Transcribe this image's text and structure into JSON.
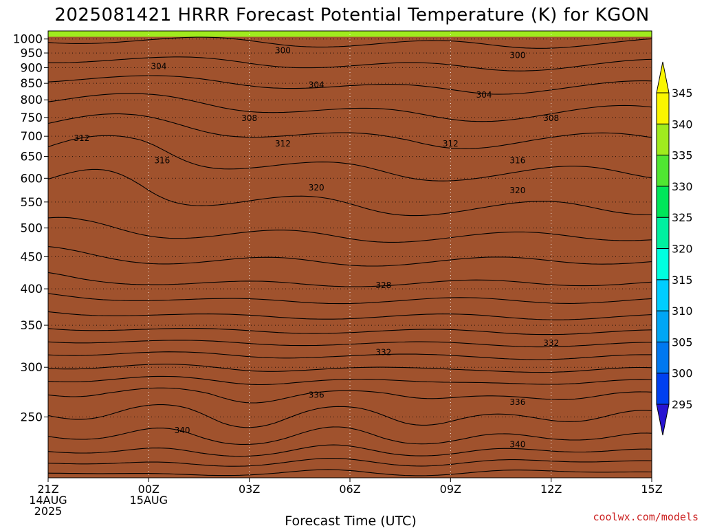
{
  "chart_data": {
    "type": "heatmap",
    "title": "2025081421 HRRR Forecast Potential Temperature (K) for KGON",
    "xlabel": "Forecast Time (UTC)",
    "ylabel": "",
    "x_ticks": [
      {
        "hours": 0,
        "lines": [
          "21Z",
          "14AUG",
          "2025"
        ]
      },
      {
        "hours": 3,
        "lines": [
          "00Z",
          "15AUG"
        ]
      },
      {
        "hours": 6,
        "lines": [
          "03Z"
        ]
      },
      {
        "hours": 9,
        "lines": [
          "06Z"
        ]
      },
      {
        "hours": 12,
        "lines": [
          "09Z"
        ]
      },
      {
        "hours": 15,
        "lines": [
          "12Z"
        ]
      },
      {
        "hours": 18,
        "lines": [
          "15Z"
        ]
      }
    ],
    "xlim_hours": [
      0,
      18
    ],
    "y_ticks": [
      "250",
      "300",
      "350",
      "400",
      "450",
      "500",
      "550",
      "600",
      "650",
      "700",
      "750",
      "800",
      "850",
      "900",
      "950",
      "1000"
    ],
    "ylim_hPa": [
      1030,
      200
    ],
    "y_scale": "log-pressure",
    "grid": "dotted",
    "colorbar": {
      "placement": "right",
      "levels": [
        295,
        300,
        305,
        310,
        315,
        320,
        325,
        330,
        335,
        340,
        345
      ],
      "labels": [
        "295",
        "300",
        "305",
        "310",
        "315",
        "320",
        "325",
        "330",
        "335",
        "340",
        "345"
      ],
      "colors": [
        "#1e00e6",
        "#0040f0",
        "#0078f0",
        "#00a6f5",
        "#00cdff",
        "#00ffe0",
        "#00f0a0",
        "#00e65a",
        "#50e632",
        "#a0eb1e",
        "#faf500"
      ]
    },
    "surface_color": "#a0522d",
    "contour_levels": [
      298,
      300,
      302,
      304,
      306,
      308,
      310,
      312,
      314,
      316,
      318,
      320,
      322,
      324,
      326,
      328,
      330,
      332,
      334,
      336,
      338,
      340,
      342,
      344
    ],
    "contour_labels": [
      {
        "hours": 1.0,
        "p": 695,
        "text": "312"
      },
      {
        "hours": 3.3,
        "p": 905,
        "text": "304"
      },
      {
        "hours": 3.4,
        "p": 640,
        "text": "316"
      },
      {
        "hours": 4.0,
        "p": 238,
        "text": "340"
      },
      {
        "hours": 6.0,
        "p": 748,
        "text": "308"
      },
      {
        "hours": 7.0,
        "p": 958,
        "text": "300"
      },
      {
        "hours": 7.0,
        "p": 681,
        "text": "312"
      },
      {
        "hours": 8.0,
        "p": 271,
        "text": "336"
      },
      {
        "hours": 8.0,
        "p": 580,
        "text": "320"
      },
      {
        "hours": 8.0,
        "p": 845,
        "text": "304"
      },
      {
        "hours": 10.0,
        "p": 317,
        "text": "332"
      },
      {
        "hours": 10.0,
        "p": 405,
        "text": "328"
      },
      {
        "hours": 12.0,
        "p": 681,
        "text": "312"
      },
      {
        "hours": 13.0,
        "p": 815,
        "text": "304"
      },
      {
        "hours": 14.0,
        "p": 226,
        "text": "340"
      },
      {
        "hours": 14.0,
        "p": 264,
        "text": "336"
      },
      {
        "hours": 14.0,
        "p": 574,
        "text": "320"
      },
      {
        "hours": 14.0,
        "p": 640,
        "text": "316"
      },
      {
        "hours": 14.0,
        "p": 942,
        "text": "300"
      },
      {
        "hours": 15.0,
        "p": 748,
        "text": "308"
      },
      {
        "hours": 15.0,
        "p": 328,
        "text": "332"
      }
    ]
  },
  "credit": "coolwx.com/models"
}
